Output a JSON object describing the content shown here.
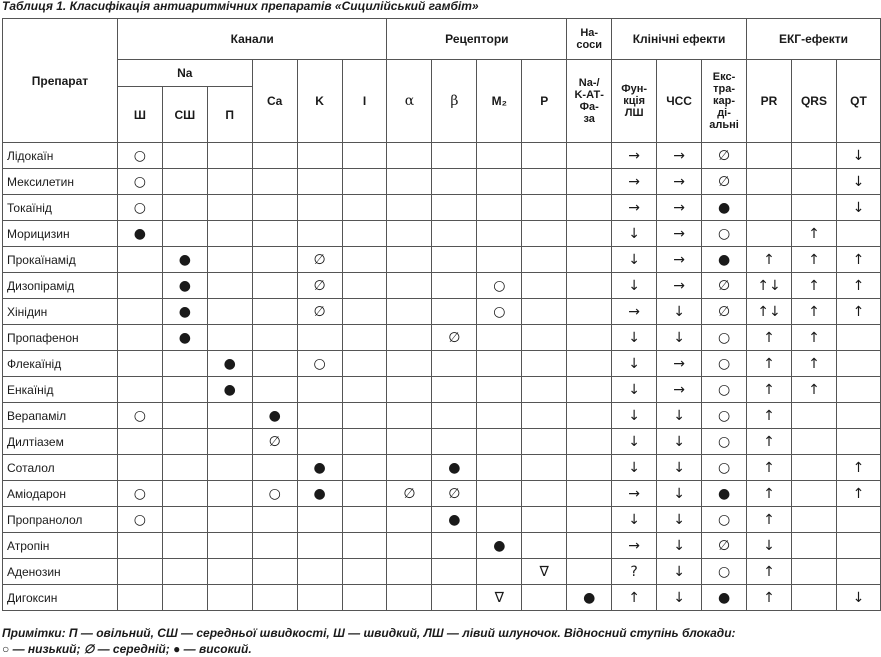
{
  "title": "Таблиця 1. Класифікація антиаритмічних препаратів «Сицилійський гамбіт»",
  "header": {
    "drug": "Препарат",
    "channels": "Канали",
    "receptors": "Рецептори",
    "pumps": "На-\nсоси",
    "clinical": "Клінічні ефекти",
    "ecg": "ЕКГ-ефекти",
    "na": "Na",
    "fast": "Ш",
    "medium": "СШ",
    "slow": "П",
    "ca": "Ca",
    "k": "K",
    "i": "I",
    "alpha": "α",
    "beta": "β",
    "m2": "M₂",
    "p": "P",
    "atpase": "Na-/\nK-АТ-\nФа-\nза",
    "lv_function": "Фун-\nкція\nЛШ",
    "hr": "ЧСС",
    "extracardiac": "Екс-\nтра-\nкар-\nді-\nальні",
    "pr": "PR",
    "qrs": "QRS",
    "qt": "QT"
  },
  "rows": [
    {
      "drug": "Лідокаїн",
      "c": [
        "○",
        "",
        "",
        "",
        "",
        "",
        "",
        "",
        "",
        "",
        "",
        "→",
        "→",
        "∅",
        "",
        "",
        "↓"
      ]
    },
    {
      "drug": "Мексилетин",
      "c": [
        "○",
        "",
        "",
        "",
        "",
        "",
        "",
        "",
        "",
        "",
        "",
        "→",
        "→",
        "∅",
        "",
        "",
        "↓"
      ]
    },
    {
      "drug": "Токаїнід",
      "c": [
        "○",
        "",
        "",
        "",
        "",
        "",
        "",
        "",
        "",
        "",
        "",
        "→",
        "→",
        "●",
        "",
        "",
        "↓"
      ]
    },
    {
      "drug": "Морицизин",
      "c": [
        "●",
        "",
        "",
        "",
        "",
        "",
        "",
        "",
        "",
        "",
        "",
        "↓",
        "→",
        "○",
        "",
        "↑",
        ""
      ]
    },
    {
      "drug": "Прокаїнамід",
      "c": [
        "",
        "●",
        "",
        "",
        "∅",
        "",
        "",
        "",
        "",
        "",
        "",
        "↓",
        "→",
        "●",
        "↑",
        "↑",
        "↑"
      ]
    },
    {
      "drug": "Дизопірамід",
      "c": [
        "",
        "●",
        "",
        "",
        "∅",
        "",
        "",
        "",
        "○",
        "",
        "",
        "↓",
        "→",
        "∅",
        "↑↓",
        "↑",
        "↑"
      ]
    },
    {
      "drug": "Хінідин",
      "c": [
        "",
        "●",
        "",
        "",
        "∅",
        "",
        "",
        "",
        "○",
        "",
        "",
        "→",
        "↓",
        "∅",
        "↑↓",
        "↑",
        "↑"
      ]
    },
    {
      "drug": "Пропафенон",
      "c": [
        "",
        "●",
        "",
        "",
        "",
        "",
        "",
        "∅",
        "",
        "",
        "",
        "↓",
        "↓",
        "○",
        "↑",
        "↑",
        ""
      ]
    },
    {
      "drug": "Флекаїнід",
      "c": [
        "",
        "",
        "●",
        "",
        "○",
        "",
        "",
        "",
        "",
        "",
        "",
        "↓",
        "→",
        "○",
        "↑",
        "↑",
        ""
      ]
    },
    {
      "drug": "Енкаїнід",
      "c": [
        "",
        "",
        "●",
        "",
        "",
        "",
        "",
        "",
        "",
        "",
        "",
        "↓",
        "→",
        "○",
        "↑",
        "↑",
        ""
      ]
    },
    {
      "drug": "Верапаміл",
      "c": [
        "○",
        "",
        "",
        "●",
        "",
        "",
        "",
        "",
        "",
        "",
        "",
        "↓",
        "↓",
        "○",
        "↑",
        "",
        ""
      ]
    },
    {
      "drug": "Дилтіазем",
      "c": [
        "",
        "",
        "",
        "∅",
        "",
        "",
        "",
        "",
        "",
        "",
        "",
        "↓",
        "↓",
        "○",
        "↑",
        "",
        ""
      ]
    },
    {
      "drug": "Соталол",
      "c": [
        "",
        "",
        "",
        "",
        "●",
        "",
        "",
        "●",
        "",
        "",
        "",
        "↓",
        "↓",
        "○",
        "↑",
        "",
        "↑"
      ]
    },
    {
      "drug": "Аміодарон",
      "c": [
        "○",
        "",
        "",
        "○",
        "●",
        "",
        "∅",
        "∅",
        "",
        "",
        "",
        "→",
        "↓",
        "●",
        "↑",
        "",
        "↑"
      ]
    },
    {
      "drug": "Пропранолол",
      "c": [
        "○",
        "",
        "",
        "",
        "",
        "",
        "",
        "●",
        "",
        "",
        "",
        "↓",
        "↓",
        "○",
        "↑",
        "",
        ""
      ]
    },
    {
      "drug": "Атропін",
      "c": [
        "",
        "",
        "",
        "",
        "",
        "",
        "",
        "",
        "●",
        "",
        "",
        "→",
        "↓",
        "∅",
        "↓",
        "",
        ""
      ]
    },
    {
      "drug": "Аденозин",
      "c": [
        "",
        "",
        "",
        "",
        "",
        "",
        "",
        "",
        "",
        "∇",
        "",
        "?",
        "↓",
        "○",
        "↑",
        "",
        ""
      ]
    },
    {
      "drug": "Дигоксин",
      "c": [
        "",
        "",
        "",
        "",
        "",
        "",
        "",
        "",
        "∇",
        "",
        "●",
        "↑",
        "↓",
        "●",
        "↑",
        "",
        "↓"
      ]
    }
  ],
  "notes": {
    "line1": "Примітки: П — овільний, СШ — середньої швидкості, Ш — швидкий, ЛШ — лівий шлуночок. Відносний ступінь блокади:",
    "line2": "○ — низький; ∅ — середній; ● — високий."
  }
}
